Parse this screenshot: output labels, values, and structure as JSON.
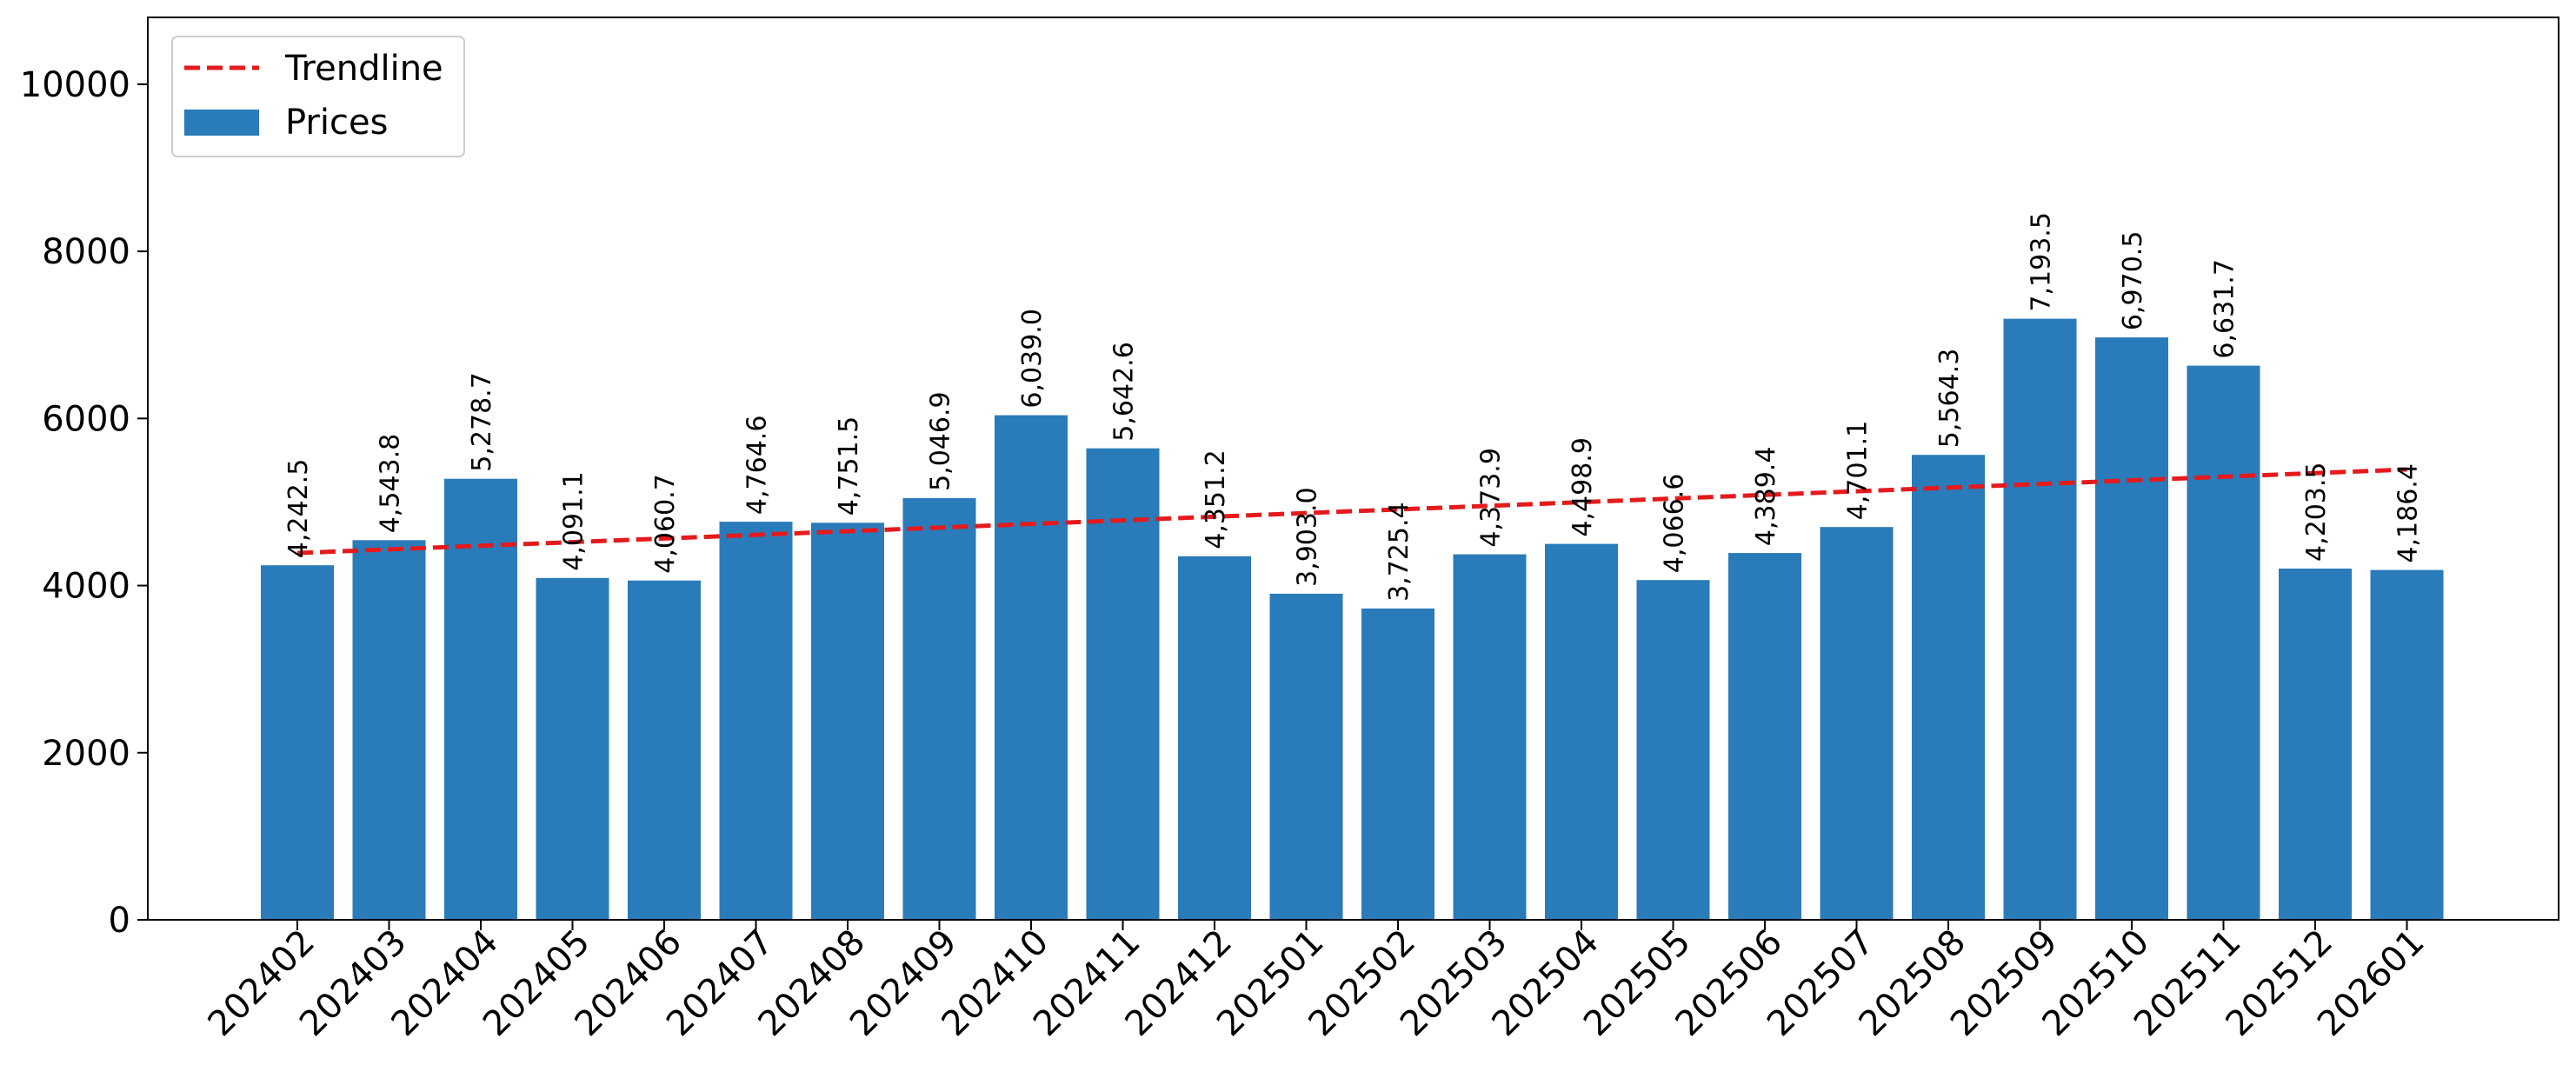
{
  "chart_data": {
    "type": "bar",
    "title": "",
    "xlabel": "",
    "ylabel": "",
    "categories": [
      "202402",
      "202403",
      "202404",
      "202405",
      "202406",
      "202407",
      "202408",
      "202409",
      "202410",
      "202411",
      "202412",
      "202501",
      "202502",
      "202503",
      "202504",
      "202505",
      "202506",
      "202507",
      "202508",
      "202509",
      "202510",
      "202511",
      "202512",
      "202601"
    ],
    "series": [
      {
        "name": "Prices",
        "color": "#2a7bba",
        "values": [
          4242.5,
          4543.8,
          5278.7,
          4091.1,
          4060.7,
          4764.6,
          4751.5,
          5046.9,
          6039.0,
          5642.6,
          4351.2,
          3903.0,
          3725.4,
          4373.9,
          4498.9,
          4066.6,
          4389.4,
          4701.1,
          5564.3,
          7193.5,
          6970.5,
          6631.7,
          4203.5,
          4186.4
        ],
        "value_labels": [
          "4,242.5",
          "4,543.8",
          "5,278.7",
          "4,091.1",
          "4,060.7",
          "4,764.6",
          "4,751.5",
          "5,046.9",
          "6,039.0",
          "5,642.6",
          "4,351.2",
          "3,903.0",
          "3,725.4",
          "4,373.9",
          "4,498.9",
          "4,066.6",
          "4,389.4",
          "4,701.1",
          "5,564.3",
          "7,193.5",
          "6,970.5",
          "6,631.7",
          "4,203.5",
          "4,186.4"
        ]
      }
    ],
    "trendline": {
      "name": "Trendline",
      "color": "#e41a1c",
      "style": "dashed",
      "start": 4390,
      "end": 5390
    },
    "ylim": [
      0,
      10800
    ],
    "yticks": [
      0,
      2000,
      4000,
      6000,
      8000,
      10000
    ],
    "grid": false,
    "legend": {
      "position": "top-left",
      "entries": [
        "Trendline",
        "Prices"
      ]
    }
  }
}
